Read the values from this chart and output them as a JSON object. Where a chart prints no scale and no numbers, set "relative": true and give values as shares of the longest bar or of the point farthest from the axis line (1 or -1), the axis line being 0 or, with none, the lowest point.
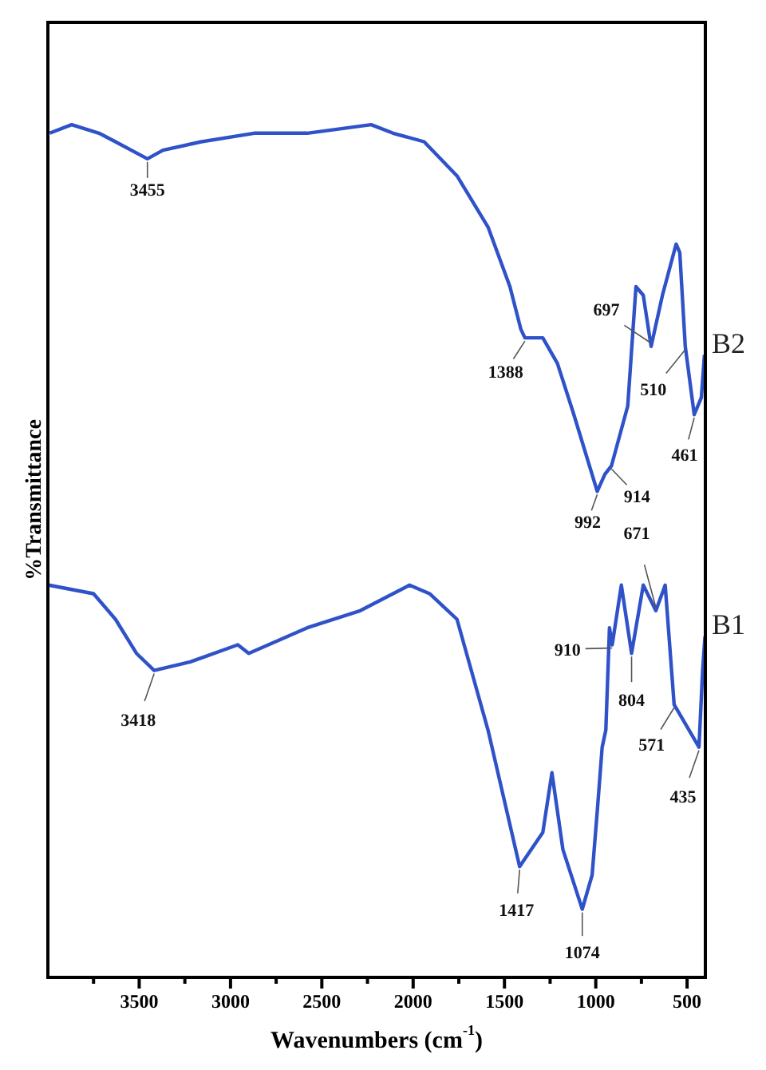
{
  "chart_data": {
    "type": "line",
    "relative": true,
    "xlabel": "Wavenumbers (cm$^{-1}$)",
    "ylabel": "%Transmittance",
    "xlim": [
      4000,
      400
    ],
    "xticks": [
      {
        "value": 3750,
        "label": null
      },
      3500,
      {
        "value": 3250,
        "label": null
      },
      3000,
      {
        "value": 2750,
        "label": null
      },
      2500,
      {
        "value": 2250,
        "label": null
      },
      2000,
      {
        "value": 1750,
        "label": null
      },
      1500,
      {
        "value": 1250,
        "label": null
      },
      1000,
      {
        "value": 750,
        "label": null
      },
      500
    ],
    "tick_labels": "x",
    "grid": false,
    "legend": false,
    "marker": "none",
    "line_style": "solid",
    "series": [
      {
        "name": "B2",
        "color": "#2f52c8",
        "x": [
          3990,
          3870,
          3720,
          3630,
          3455,
          3370,
          3160,
          2870,
          2580,
          2230,
          2110,
          1940,
          1760,
          1590,
          1470,
          1410,
          1388,
          1290,
          1210,
          1120,
          992,
          950,
          914,
          825,
          780,
          740,
          697,
          635,
          560,
          540,
          510,
          461,
          422,
          405
        ],
        "values": [
          0.99,
          1.0,
          0.99,
          0.98,
          0.96,
          0.97,
          0.98,
          0.99,
          0.99,
          1.0,
          0.99,
          0.98,
          0.94,
          0.88,
          0.81,
          0.76,
          0.75,
          0.75,
          0.72,
          0.66,
          0.57,
          0.59,
          0.6,
          0.67,
          0.81,
          0.8,
          0.74,
          0.8,
          0.86,
          0.85,
          0.74,
          0.66,
          0.68,
          0.73
        ]
      },
      {
        "name": "B1",
        "color": "#2f52c8",
        "x": [
          3995,
          3750,
          3630,
          3515,
          3418,
          3220,
          2960,
          2900,
          2580,
          2290,
          2020,
          1910,
          1760,
          1590,
          1417,
          1290,
          1240,
          1180,
          1074,
          1020,
          990,
          965,
          945,
          925,
          910,
          860,
          804,
          740,
          671,
          620,
          571,
          435,
          415,
          402
        ],
        "values": [
          0.46,
          0.45,
          0.42,
          0.38,
          0.36,
          0.37,
          0.39,
          0.38,
          0.41,
          0.43,
          0.46,
          0.45,
          0.42,
          0.29,
          0.13,
          0.17,
          0.24,
          0.15,
          0.08,
          0.12,
          0.2,
          0.27,
          0.29,
          0.41,
          0.39,
          0.46,
          0.38,
          0.46,
          0.43,
          0.46,
          0.32,
          0.27,
          0.36,
          0.4
        ]
      }
    ],
    "annotations": [
      {
        "text": "3455",
        "x": 3455,
        "y": 0.96
      },
      {
        "text": "1388",
        "x": 1388,
        "y": 0.75
      },
      {
        "text": "992",
        "x": 992,
        "y": 0.57
      },
      {
        "text": "914",
        "x": 914,
        "y": 0.6
      },
      {
        "text": "697",
        "x": 697,
        "y": 0.74
      },
      {
        "text": "510",
        "x": 510,
        "y": 0.74
      },
      {
        "text": "461",
        "x": 461,
        "y": 0.66
      },
      {
        "text": "3418",
        "x": 3418,
        "y": 0.36
      },
      {
        "text": "1417",
        "x": 1417,
        "y": 0.13
      },
      {
        "text": "1074",
        "x": 1074,
        "y": 0.08
      },
      {
        "text": "910",
        "x": 910,
        "y": 0.39
      },
      {
        "text": "804",
        "x": 804,
        "y": 0.38
      },
      {
        "text": "671",
        "x": 671,
        "y": 0.43
      },
      {
        "text": "571",
        "x": 571,
        "y": 0.32
      },
      {
        "text": "435",
        "x": 435,
        "y": 0.27
      }
    ]
  }
}
